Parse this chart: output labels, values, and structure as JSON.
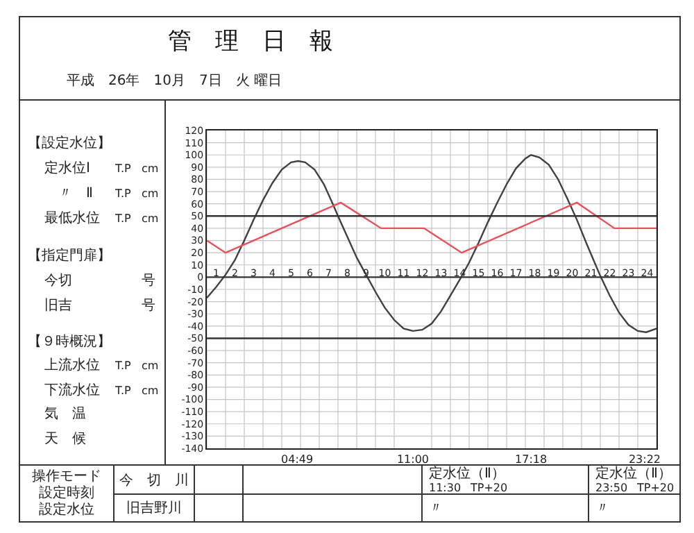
{
  "chart_data": {
    "type": "line",
    "title": "管　理　日　報",
    "subtitle": "平成　26年　10月　7日　火 曜日",
    "x": [
      0,
      0.5,
      1,
      1.5,
      2,
      2.5,
      3,
      3.5,
      4,
      4.5,
      4.87,
      5.25,
      5.75,
      6.25,
      6.75,
      7,
      7.5,
      8,
      8.5,
      9,
      9.5,
      10,
      10.5,
      11,
      11.5,
      12,
      12.5,
      13,
      13.5,
      14,
      14.5,
      15,
      15.5,
      16,
      16.5,
      17,
      17.3,
      17.75,
      18.25,
      18.75,
      19.25,
      19.75,
      20.25,
      20.75,
      21,
      21.5,
      22,
      22.5,
      23,
      23.45,
      24
    ],
    "series": [
      {
        "color": "#404040",
        "values": [
          -17,
          -8,
          2,
          14,
          30,
          47,
          63,
          77,
          88,
          94,
          95,
          94,
          88,
          76,
          59,
          50,
          33,
          16,
          2,
          -12,
          -25,
          -35,
          -42,
          -44,
          -43,
          -38,
          -28,
          -15,
          -2,
          12,
          28,
          45,
          61,
          76,
          89,
          97,
          100,
          98,
          92,
          80,
          64,
          47,
          28,
          10,
          1,
          -15,
          -29,
          -39,
          -44,
          -45,
          -42
        ]
      },
      {
        "color": "#e8505a",
        "x": [
          0,
          1,
          7.15,
          9.3,
          11.6,
          13.6,
          19.75,
          21.75,
          24
        ],
        "values": [
          30,
          20,
          61,
          40,
          40,
          20,
          61,
          40,
          40
        ]
      },
      {
        "color": "#333333",
        "x": [
          0,
          24
        ],
        "values": [
          50,
          50
        ]
      },
      {
        "color": "#333333",
        "x": [
          0,
          24
        ],
        "values": [
          0,
          0
        ]
      },
      {
        "color": "#333333",
        "x": [
          0,
          24
        ],
        "values": [
          -50,
          -50
        ]
      }
    ],
    "xlim": [
      0,
      24
    ],
    "xticks": [
      {
        "value": 0,
        "label": null
      },
      {
        "value": 1,
        "label": null
      },
      {
        "value": 2,
        "label": null
      },
      {
        "value": 3,
        "label": null
      },
      {
        "value": 4,
        "label": null
      },
      {
        "value": 4.82,
        "label": "04:49"
      },
      {
        "value": 5,
        "label": null
      },
      {
        "value": 6,
        "label": null
      },
      {
        "value": 7,
        "label": null
      },
      {
        "value": 8,
        "label": null
      },
      {
        "value": 9,
        "label": null
      },
      {
        "value": 10,
        "label": null
      },
      {
        "value": 11,
        "label": "11:00"
      },
      {
        "value": 12,
        "label": null
      },
      {
        "value": 13,
        "label": null
      },
      {
        "value": 14,
        "label": null
      },
      {
        "value": 15,
        "label": null
      },
      {
        "value": 16,
        "label": null
      },
      {
        "value": 17,
        "label": null
      },
      {
        "value": 17.3,
        "label": "17:18"
      },
      {
        "value": 18,
        "label": null
      },
      {
        "value": 19,
        "label": null
      },
      {
        "value": 20,
        "label": null
      },
      {
        "value": 21,
        "label": null
      },
      {
        "value": 22,
        "label": null
      },
      {
        "value": 23,
        "label": null
      },
      {
        "value": 23.37,
        "label": "23:22"
      },
      {
        "value": 24,
        "label": null
      }
    ],
    "x2lim": [
      0,
      24
    ],
    "x2ticks": [
      {
        "value": 0.5,
        "label": "1"
      },
      {
        "value": 1.5,
        "label": "2"
      },
      {
        "value": 2.5,
        "label": "3"
      },
      {
        "value": 3.5,
        "label": "4"
      },
      {
        "value": 4.5,
        "label": "5"
      },
      {
        "value": 5.5,
        "label": "6"
      },
      {
        "value": 6.5,
        "label": "7"
      },
      {
        "value": 7.5,
        "label": "8"
      },
      {
        "value": 8.5,
        "label": "9"
      },
      {
        "value": 9.5,
        "label": "10"
      },
      {
        "value": 10.5,
        "label": "11"
      },
      {
        "value": 11.5,
        "label": "12"
      },
      {
        "value": 12.5,
        "label": "13"
      },
      {
        "value": 13.5,
        "label": "14"
      },
      {
        "value": 14.5,
        "label": "15"
      },
      {
        "value": 15.5,
        "label": "16"
      },
      {
        "value": 16.5,
        "label": "17"
      },
      {
        "value": 17.5,
        "label": "18"
      },
      {
        "value": 18.5,
        "label": "19"
      },
      {
        "value": 19.5,
        "label": "20"
      },
      {
        "value": 20.5,
        "label": "21"
      },
      {
        "value": 21.5,
        "label": "22"
      },
      {
        "value": 22.5,
        "label": "23"
      },
      {
        "value": 23.5,
        "label": "24"
      }
    ],
    "ylim": [
      -140,
      120
    ],
    "yticks": [
      -140,
      -130,
      -120,
      -110,
      -100,
      -90,
      -80,
      -70,
      -60,
      -50,
      -40,
      -30,
      -20,
      -10,
      0,
      10,
      20,
      30,
      40,
      50,
      60,
      70,
      80,
      90,
      100,
      110,
      120
    ],
    "grid": true,
    "annotations": [
      "【設定水位】",
      "定水位Ⅰ",
      "T.P",
      "cm",
      "〃　Ⅱ",
      "T.P",
      "cm",
      "最低水位",
      "T.P",
      "cm",
      "【指定門扉】",
      "今切",
      "号",
      "旧吉",
      "号",
      "【９時概況】",
      "上流水位",
      "T.P",
      "cm",
      "下流水位",
      "T.P",
      "cm",
      "気　温",
      "天　候",
      "操作モード",
      "設定時刻",
      "設定水位",
      "今　切　川",
      "旧吉野川",
      "定水位（Ⅱ）",
      "11:30",
      "TP+20",
      "〃",
      "定水位（Ⅱ）",
      "23:50",
      "TP+20",
      "〃"
    ]
  }
}
